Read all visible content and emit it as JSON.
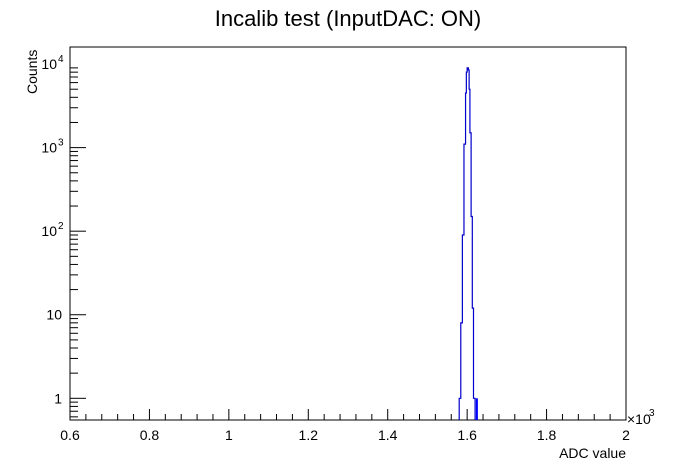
{
  "chart_data": {
    "type": "histogram",
    "title": "Incalib test (InputDAC: ON)",
    "xlabel": "ADC value",
    "ylabel": "Counts",
    "x_multiplier_label": "×10",
    "x_multiplier_exp": "3",
    "xlim": [
      0.6,
      2.0
    ],
    "x_scale_factor": 1000,
    "ylim": [
      0.55,
      16000
    ],
    "yscale": "log",
    "grid": false,
    "x_ticks": [
      "0.6",
      "0.8",
      "1",
      "1.2",
      "1.4",
      "1.6",
      "1.8",
      "2"
    ],
    "y_ticks": [
      {
        "base": "1",
        "exp": ""
      },
      {
        "base": "10",
        "exp": ""
      },
      {
        "base": "10",
        "exp": "2"
      },
      {
        "base": "10",
        "exp": "3"
      },
      {
        "base": "10",
        "exp": "4"
      }
    ],
    "series": [
      {
        "color": "#0000cc",
        "style": "step",
        "bins": [
          {
            "x0": 1.58,
            "x1": 1.584,
            "y": 1
          },
          {
            "x0": 1.584,
            "x1": 1.588,
            "y": 8
          },
          {
            "x0": 1.588,
            "x1": 1.592,
            "y": 90
          },
          {
            "x0": 1.592,
            "x1": 1.596,
            "y": 1100
          },
          {
            "x0": 1.596,
            "x1": 1.598,
            "y": 4500
          },
          {
            "x0": 1.598,
            "x1": 1.6,
            "y": 8000
          },
          {
            "x0": 1.6,
            "x1": 1.603,
            "y": 9000
          },
          {
            "x0": 1.603,
            "x1": 1.605,
            "y": 8500
          },
          {
            "x0": 1.605,
            "x1": 1.607,
            "y": 5000
          },
          {
            "x0": 1.607,
            "x1": 1.61,
            "y": 1500
          },
          {
            "x0": 1.61,
            "x1": 1.613,
            "y": 150
          },
          {
            "x0": 1.613,
            "x1": 1.616,
            "y": 12
          },
          {
            "x0": 1.616,
            "x1": 1.62,
            "y": 1
          }
        ]
      },
      {
        "color": "#0000ff",
        "style": "filled",
        "bins": [
          {
            "x0": 1.622,
            "x1": 1.627,
            "y": 1
          }
        ]
      }
    ]
  }
}
